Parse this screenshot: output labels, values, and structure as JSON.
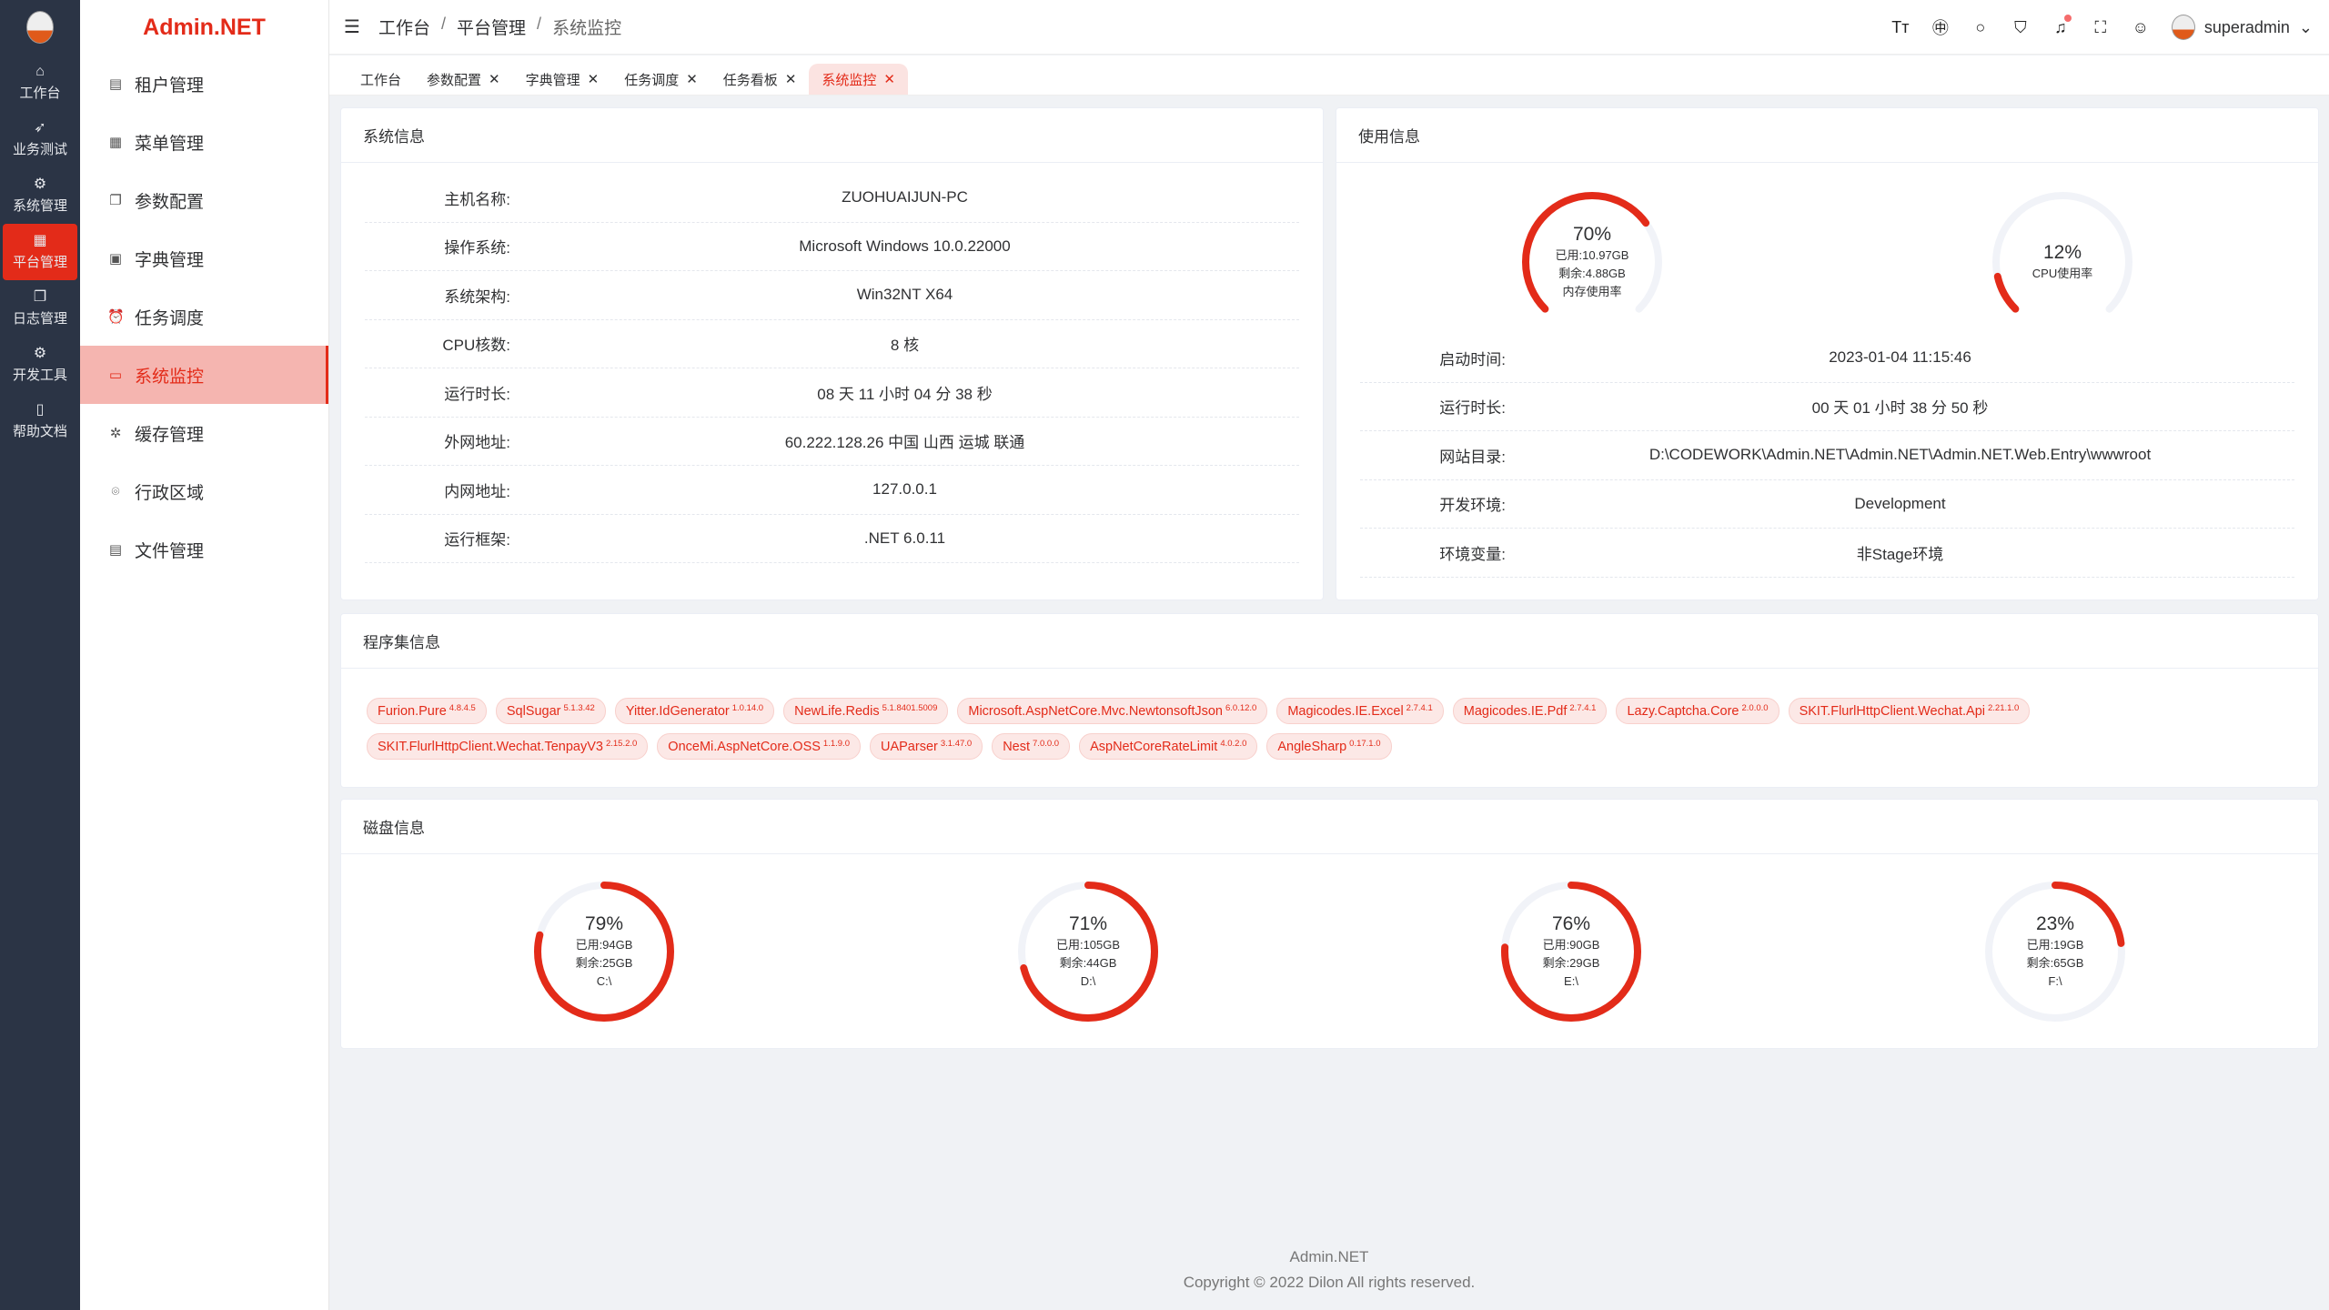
{
  "rail": [
    {
      "label": "工作台",
      "icon": "home-icon",
      "glyph": "⌂"
    },
    {
      "label": "业务测试",
      "icon": "send-icon",
      "glyph": "➶"
    },
    {
      "label": "系统管理",
      "icon": "gear-icon",
      "glyph": "⚙"
    },
    {
      "label": "平台管理",
      "icon": "grid-icon",
      "glyph": "▦",
      "active": true
    },
    {
      "label": "日志管理",
      "icon": "copy-icon",
      "glyph": "❐"
    },
    {
      "label": "开发工具",
      "icon": "tool-icon",
      "glyph": "⚙"
    },
    {
      "label": "帮助文档",
      "icon": "book-icon",
      "glyph": "▯"
    }
  ],
  "brand": "Admin.NET",
  "menu": [
    {
      "label": "租户管理",
      "icon": "building-icon",
      "glyph": "▤"
    },
    {
      "label": "菜单管理",
      "icon": "grid-icon",
      "glyph": "▦"
    },
    {
      "label": "参数配置",
      "icon": "copy-icon",
      "glyph": "❐"
    },
    {
      "label": "字典管理",
      "icon": "document-icon",
      "glyph": "▣"
    },
    {
      "label": "任务调度",
      "icon": "alarm-clock-icon",
      "glyph": "⏰"
    },
    {
      "label": "系统监控",
      "icon": "monitor-icon",
      "glyph": "▭",
      "active": true
    },
    {
      "label": "缓存管理",
      "icon": "loading-icon",
      "glyph": "✲"
    },
    {
      "label": "行政区域",
      "icon": "location-icon",
      "glyph": "⌾"
    },
    {
      "label": "文件管理",
      "icon": "file-icon",
      "glyph": "▤"
    }
  ],
  "breadcrumb": [
    "工作台",
    "平台管理",
    "系统监控"
  ],
  "header_icons": [
    {
      "icon": "font-size-icon",
      "glyph": "Tт"
    },
    {
      "icon": "language-icon",
      "glyph": "㊥"
    },
    {
      "icon": "search-icon",
      "glyph": "○"
    },
    {
      "icon": "theme-shirt-icon",
      "glyph": "⛉"
    },
    {
      "icon": "bell-icon",
      "glyph": "♫",
      "badge": true
    },
    {
      "icon": "fullscreen-icon",
      "glyph": "⛶"
    },
    {
      "icon": "user-icon",
      "glyph": "☺"
    }
  ],
  "user": {
    "name": "superadmin"
  },
  "tabs": [
    {
      "label": "工作台",
      "closable": false
    },
    {
      "label": "参数配置",
      "closable": true
    },
    {
      "label": "字典管理",
      "closable": true
    },
    {
      "label": "任务调度",
      "closable": true
    },
    {
      "label": "任务看板",
      "closable": true
    },
    {
      "label": "系统监控",
      "closable": true,
      "active": true
    }
  ],
  "sysinfo": {
    "title": "系统信息",
    "rows": [
      {
        "k": "主机名称:",
        "v": "ZUOHUAIJUN-PC"
      },
      {
        "k": "操作系统:",
        "v": "Microsoft Windows 10.0.22000"
      },
      {
        "k": "系统架构:",
        "v": "Win32NT X64"
      },
      {
        "k": "CPU核数:",
        "v": "8 核"
      },
      {
        "k": "运行时长:",
        "v": "08 天 11 小时 04 分 38 秒"
      },
      {
        "k": "外网地址:",
        "v": "60.222.128.26 中国 山西 运城 联通"
      },
      {
        "k": "内网地址:",
        "v": "127.0.0.1"
      },
      {
        "k": "运行框架:",
        "v": ".NET 6.0.11"
      }
    ]
  },
  "usage": {
    "title": "使用信息",
    "memory": {
      "percent": 70,
      "used": "已用:10.97GB",
      "free": "剩余:4.88GB",
      "label": "内存使用率"
    },
    "cpu": {
      "percent": 12,
      "label": "CPU使用率"
    },
    "rows": [
      {
        "k": "启动时间:",
        "v": "2023-01-04 11:15:46"
      },
      {
        "k": "运行时长:",
        "v": "00 天 01 小时 38 分 50 秒"
      },
      {
        "k": "网站目录:",
        "v": "D:\\CODEWORK\\Admin.NET\\Admin.NET\\Admin.NET.Web.Entry\\wwwroot"
      },
      {
        "k": "开发环境:",
        "v": "Development"
      },
      {
        "k": "环境变量:",
        "v": "非Stage环境"
      }
    ]
  },
  "assemblies": {
    "title": "程序集信息",
    "items": [
      {
        "name": "Furion.Pure",
        "version": "4.8.4.5"
      },
      {
        "name": "SqlSugar",
        "version": "5.1.3.42"
      },
      {
        "name": "Yitter.IdGenerator",
        "version": "1.0.14.0"
      },
      {
        "name": "NewLife.Redis",
        "version": "5.1.8401.5009"
      },
      {
        "name": "Microsoft.AspNetCore.Mvc.NewtonsoftJson",
        "version": "6.0.12.0"
      },
      {
        "name": "Magicodes.IE.Excel",
        "version": "2.7.4.1"
      },
      {
        "name": "Magicodes.IE.Pdf",
        "version": "2.7.4.1"
      },
      {
        "name": "Lazy.Captcha.Core",
        "version": "2.0.0.0"
      },
      {
        "name": "SKIT.FlurlHttpClient.Wechat.Api",
        "version": "2.21.1.0"
      },
      {
        "name": "SKIT.FlurlHttpClient.Wechat.TenpayV3",
        "version": "2.15.2.0"
      },
      {
        "name": "OnceMi.AspNetCore.OSS",
        "version": "1.1.9.0"
      },
      {
        "name": "UAParser",
        "version": "3.1.47.0"
      },
      {
        "name": "Nest",
        "version": "7.0.0.0"
      },
      {
        "name": "AspNetCoreRateLimit",
        "version": "4.0.2.0"
      },
      {
        "name": "AngleSharp",
        "version": "0.17.1.0"
      }
    ]
  },
  "disks": {
    "title": "磁盘信息",
    "items": [
      {
        "percent": 79,
        "used": "已用:94GB",
        "free": "剩余:25GB",
        "name": "C:\\"
      },
      {
        "percent": 71,
        "used": "已用:105GB",
        "free": "剩余:44GB",
        "name": "D:\\"
      },
      {
        "percent": 76,
        "used": "已用:90GB",
        "free": "剩余:29GB",
        "name": "E:\\"
      },
      {
        "percent": 23,
        "used": "已用:19GB",
        "free": "剩余:65GB",
        "name": "F:\\"
      }
    ]
  },
  "footer": {
    "line1": "Admin.NET",
    "line2": "Copyright © 2022 Dilon All rights reserved."
  },
  "colors": {
    "accent": "#e32b19",
    "track": "#f1f3f8",
    "rail": "#2b3445"
  }
}
